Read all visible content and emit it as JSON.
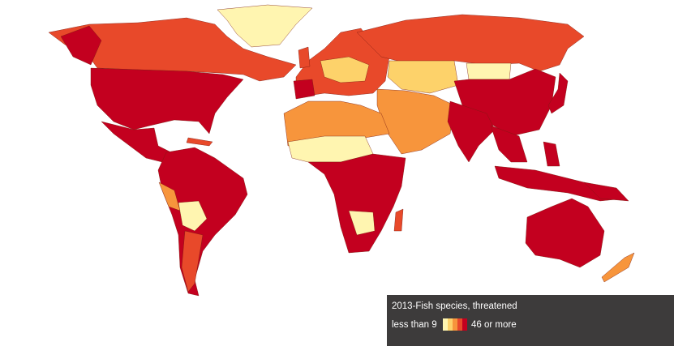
{
  "legend": {
    "title": "2013-Fish species, threatened",
    "low_label": "less than 9",
    "high_label": "46 or more",
    "colors": [
      "#fff5b0",
      "#fdd26a",
      "#f7953c",
      "#e8492a",
      "#c3001f"
    ]
  }
}
